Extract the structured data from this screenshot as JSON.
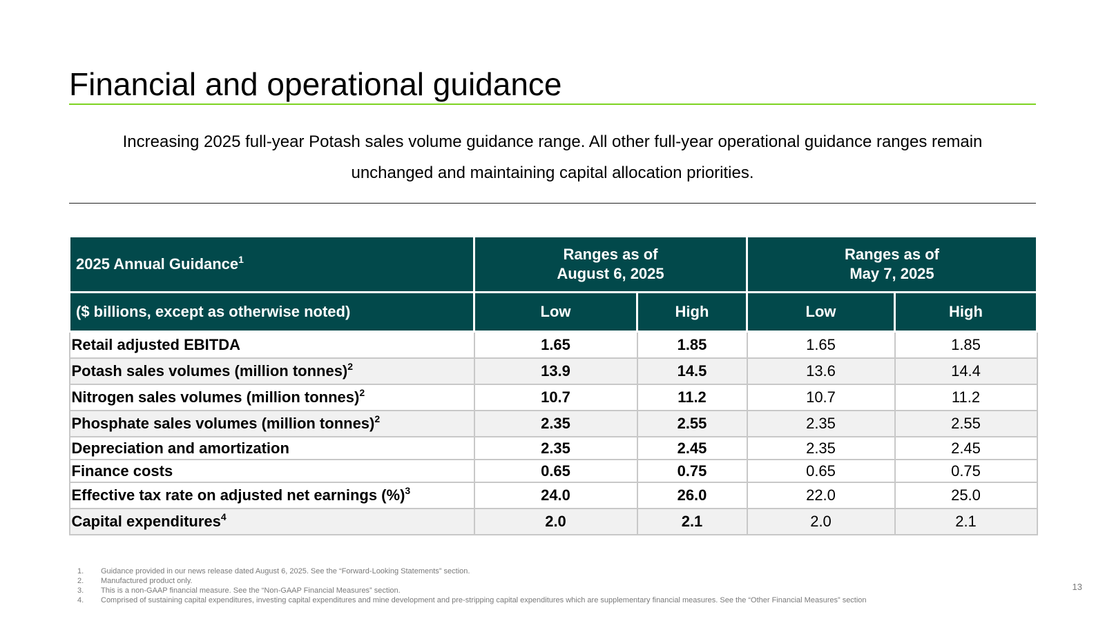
{
  "slide": {
    "title": "Financial and operational guidance",
    "subtitle_line1": "Increasing 2025 full-year Potash sales volume guidance range. All other full-year operational guidance ranges remain",
    "subtitle_line2": "unchanged and maintaining capital allocation priorities.",
    "page_number": "13",
    "accent_color": "#7ed321",
    "header_color": "#02494b"
  },
  "table": {
    "header": {
      "guidance_label": "2025 Annual Guidance",
      "guidance_sup": "1",
      "range1_line1": "Ranges as of",
      "range1_line2": "August 6, 2025",
      "range2_line1": "Ranges as of",
      "range2_line2": "May 7, 2025",
      "units_label": "($ billions, except as otherwise noted)",
      "low": "Low",
      "high": "High"
    },
    "rows": [
      {
        "label": "Retail adjusted EBITDA",
        "sup": "",
        "aug_low": "1.65",
        "aug_high": "1.85",
        "may_low": "1.65",
        "may_high": "1.85"
      },
      {
        "label": "Potash sales volumes (million tonnes)",
        "sup": "2",
        "aug_low": "13.9",
        "aug_high": "14.5",
        "may_low": "13.6",
        "may_high": "14.4"
      },
      {
        "label": "Nitrogen sales volumes (million tonnes)",
        "sup": "2",
        "aug_low": "10.7",
        "aug_high": "11.2",
        "may_low": "10.7",
        "may_high": "11.2"
      },
      {
        "label": "Phosphate sales volumes (million tonnes)",
        "sup": "2",
        "aug_low": "2.35",
        "aug_high": "2.55",
        "may_low": "2.35",
        "may_high": "2.55"
      },
      {
        "label": "Depreciation and amortization",
        "sup": "",
        "aug_low": "2.35",
        "aug_high": "2.45",
        "may_low": "2.35",
        "may_high": "2.45"
      },
      {
        "label": "Finance costs",
        "sup": "",
        "aug_low": "0.65",
        "aug_high": "0.75",
        "may_low": "0.65",
        "may_high": "0.75"
      },
      {
        "label": "Effective tax rate on adjusted net earnings (%)",
        "sup": "3",
        "aug_low": "24.0",
        "aug_high": "26.0",
        "may_low": "22.0",
        "may_high": "25.0"
      },
      {
        "label": "Capital expenditures",
        "sup": "4",
        "aug_low": "2.0",
        "aug_high": "2.1",
        "may_low": "2.0",
        "may_high": "2.1"
      }
    ]
  },
  "footnotes": [
    {
      "num": "1.",
      "text": "Guidance provided in our news release dated August 6, 2025.  See the “Forward-Looking Statements” section."
    },
    {
      "num": "2.",
      "text": "Manufactured product only."
    },
    {
      "num": "3.",
      "text": "This is a non-GAAP financial measure. See the “Non-GAAP Financial Measures” section."
    },
    {
      "num": "4.",
      "text": "Comprised of sustaining capital expenditures, investing capital expenditures and mine development and pre-stripping capital expenditures which are supplementary financial measures. See the “Other Financial Measures” section"
    }
  ]
}
